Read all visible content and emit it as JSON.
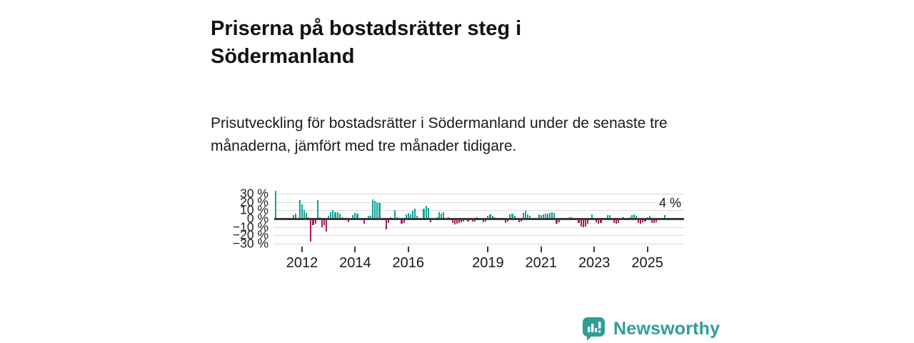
{
  "header": {
    "title": "Priserna på bostadsrätter steg i Södermanland",
    "subtitle": "Prisutveckling för bostadsrätter i Södermanland under de senaste tre månaderna, jämfört med tre månader tidigare."
  },
  "annotation": {
    "latest_value_label": "4 %"
  },
  "footer": {
    "brand": "Newsworthy"
  },
  "colors": {
    "positive": "#0fa296",
    "negative": "#a51c5c",
    "gridline": "#d8d8d8",
    "axis": "#3a3a3a",
    "logo_teal": "#2e9e96"
  },
  "chart_data": {
    "type": "bar",
    "title": "Prisutveckling för bostadsrätter i Södermanland, 3 månader jämfört med 3 månader tidigare",
    "unit": "%",
    "frequency": "monthly",
    "x_start": "2011-01",
    "x_end": "2025-09",
    "ylim": [
      -30,
      33
    ],
    "grid": true,
    "yticks": [
      {
        "value": 30,
        "label": "30 %"
      },
      {
        "value": 20,
        "label": "20 %"
      },
      {
        "value": 10,
        "label": "10 %"
      },
      {
        "value": 0,
        "label": "0 %"
      },
      {
        "value": -10,
        "label": "−10 %"
      },
      {
        "value": -20,
        "label": "−20 %"
      },
      {
        "value": -30,
        "label": "−30 %"
      }
    ],
    "xticks": [
      {
        "index": 12,
        "label": "2012"
      },
      {
        "index": 36,
        "label": "2014"
      },
      {
        "index": 60,
        "label": "2016"
      },
      {
        "index": 96,
        "label": "2019"
      },
      {
        "index": 120,
        "label": "2021"
      },
      {
        "index": 144,
        "label": "2023"
      },
      {
        "index": 168,
        "label": "2025"
      }
    ],
    "values": [
      33,
      0,
      0,
      0,
      0,
      0,
      0,
      0,
      4,
      6,
      0,
      22,
      17,
      10,
      7,
      2,
      -27,
      -8,
      -6,
      22,
      2,
      -10,
      -8,
      -15,
      3,
      8,
      10,
      8,
      8,
      6,
      2,
      0,
      0,
      -4,
      0,
      4,
      7,
      6,
      0,
      0,
      -6,
      0,
      3,
      3,
      23,
      21,
      20,
      19,
      0,
      0,
      -13,
      -5,
      2,
      0,
      10,
      2,
      0,
      -6,
      -5,
      5,
      7,
      5,
      9,
      12,
      3,
      0,
      -2,
      12,
      15,
      13,
      -4,
      0,
      0,
      2,
      8,
      6,
      8,
      0,
      2,
      0,
      -5,
      -7,
      -6,
      -5,
      -4,
      -3,
      -2,
      -3,
      -2,
      -3,
      -3,
      2,
      0,
      0,
      -4,
      -3,
      3,
      5,
      3,
      2,
      1,
      -1,
      0,
      0,
      -5,
      -3,
      5,
      6,
      3,
      0,
      -4,
      -3,
      7,
      9,
      5,
      3,
      0,
      -1,
      0,
      5,
      4,
      5,
      6,
      6,
      7,
      8,
      7,
      -6,
      -4,
      -2,
      0,
      0,
      0,
      2,
      2,
      0,
      0,
      -5,
      -9,
      -10,
      -9,
      -6,
      0,
      5,
      0,
      -4,
      -6,
      -5,
      0,
      0,
      4,
      4,
      0,
      -5,
      -6,
      -5,
      0,
      2,
      1,
      0,
      2,
      4,
      5,
      3,
      -5,
      -6,
      -4,
      -3,
      2,
      3,
      -5,
      -5,
      -4,
      0,
      0,
      0,
      4
    ],
    "latest_value": 4,
    "positive_color": "#0fa296",
    "negative_color": "#a51c5c",
    "legend": null
  }
}
